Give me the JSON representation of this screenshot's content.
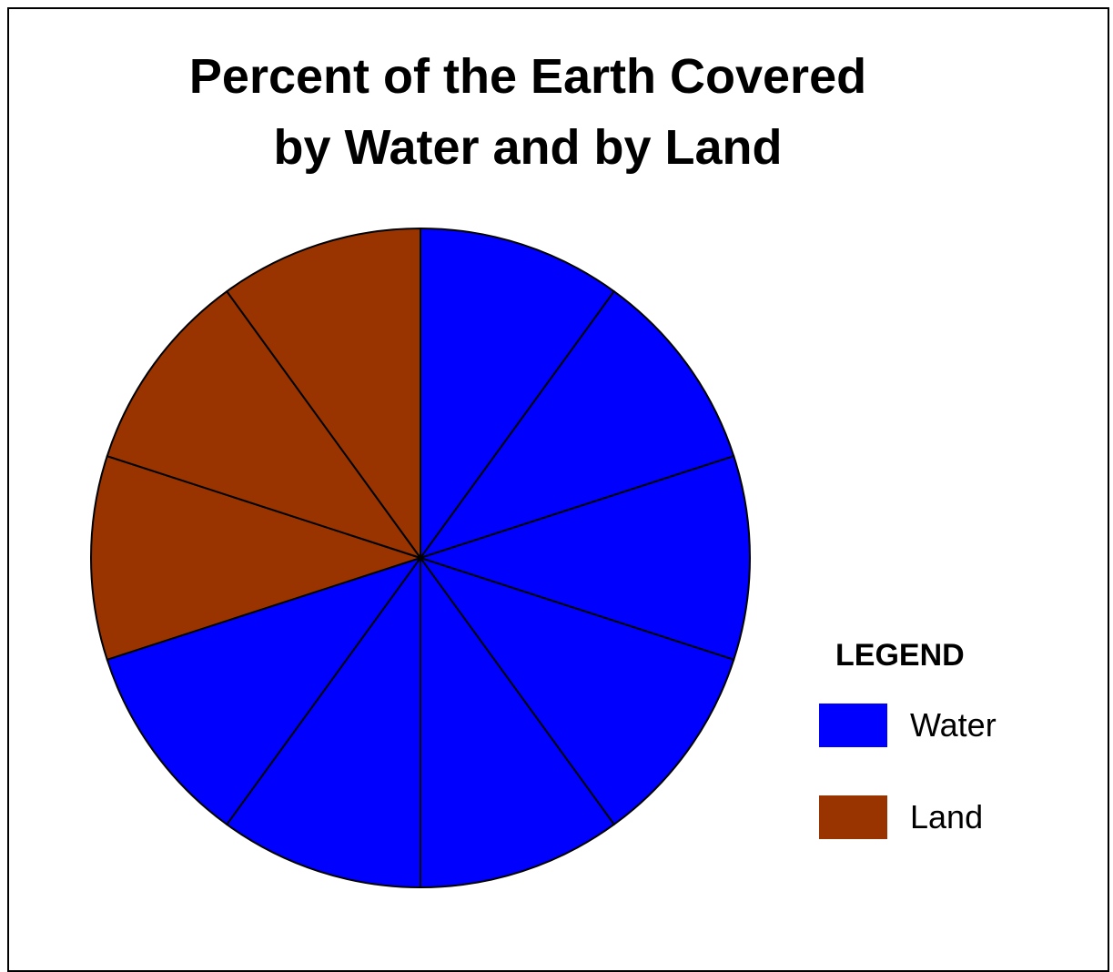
{
  "chart_data": {
    "type": "pie",
    "title_lines": [
      "Percent of the Earth Covered",
      "by Water and by Land"
    ],
    "slices": [
      {
        "category": "Water",
        "value": 10
      },
      {
        "category": "Water",
        "value": 10
      },
      {
        "category": "Water",
        "value": 10
      },
      {
        "category": "Water",
        "value": 10
      },
      {
        "category": "Water",
        "value": 10
      },
      {
        "category": "Water",
        "value": 10
      },
      {
        "category": "Water",
        "value": 10
      },
      {
        "category": "Land",
        "value": 10
      },
      {
        "category": "Land",
        "value": 10
      },
      {
        "category": "Land",
        "value": 10
      }
    ],
    "start_angle_deg": 0,
    "direction": "clockwise",
    "legend": {
      "title": "LEGEND",
      "placement": "bottom-right",
      "entries": [
        {
          "label": "Water",
          "color": "#0000ff"
        },
        {
          "label": "Land",
          "color": "#993300"
        }
      ]
    },
    "colors": {
      "Water": "#0000ff",
      "Land": "#993300",
      "outline": "#000000"
    }
  }
}
